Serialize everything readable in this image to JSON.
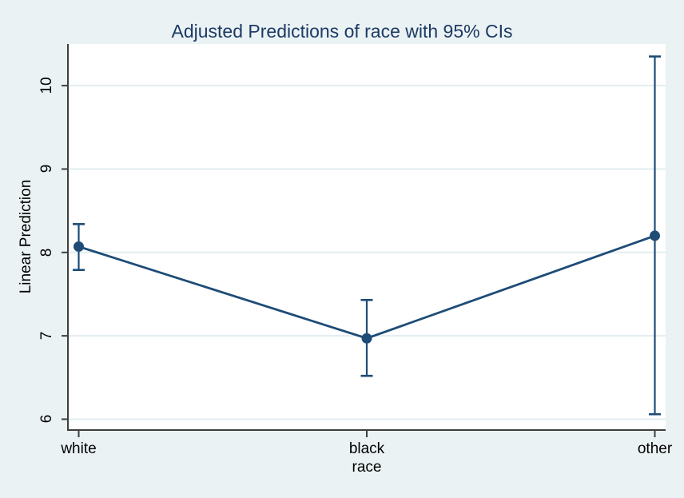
{
  "title": "Adjusted Predictions of race with 95% CIs",
  "y_axis": {
    "label": "Linear Prediction",
    "tick_labels": [
      "6",
      "7",
      "8",
      "9",
      "10"
    ]
  },
  "x_axis": {
    "label": "race",
    "tick_labels": [
      "white",
      "black",
      "other"
    ]
  },
  "chart_data": {
    "type": "line",
    "title": "Adjusted Predictions of race with 95% CIs",
    "xlabel": "race",
    "ylabel": "Linear Prediction",
    "categories": [
      "white",
      "black",
      "other"
    ],
    "series": [
      {
        "name": "Linear Prediction",
        "values": [
          8.07,
          6.97,
          8.2
        ],
        "ci_low": [
          7.79,
          6.52,
          6.06
        ],
        "ci_high": [
          8.34,
          7.43,
          10.35
        ]
      }
    ],
    "yticks": [
      6,
      7,
      8,
      9,
      10
    ],
    "ylim": [
      5.87,
      10.5
    ],
    "grid": true,
    "legend": "none",
    "marker": "filled-circle",
    "error_bars": "95% CI caps"
  },
  "colors": {
    "background": "#eaf2f3",
    "plot_background": "#ffffff",
    "gridline": "#e2edf0",
    "axis_line": "#3e3e3e",
    "series": "#1e4c77",
    "title": "#1d3a66",
    "tick_label": "#000000"
  }
}
